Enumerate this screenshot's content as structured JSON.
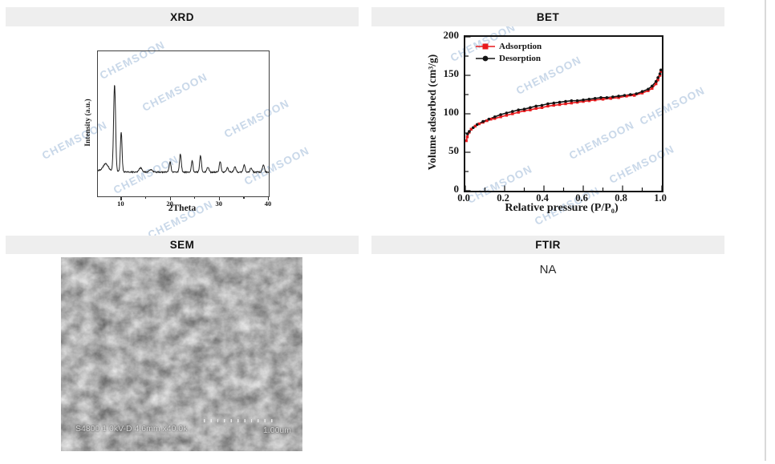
{
  "page": {
    "background": "#ffffff",
    "right_border_color": "#d9d9d9",
    "header_background": "#eeeeee"
  },
  "panels": {
    "xrd": {
      "title": "XRD"
    },
    "bet": {
      "title": "BET"
    },
    "sem": {
      "title": "SEM"
    },
    "ftir": {
      "title": "FTIR",
      "content": "NA"
    }
  },
  "watermark": {
    "text": "CHEMSOON",
    "color": "rgba(148,177,212,0.5)"
  },
  "sem_image": {
    "caption_left": "S4800 1.0kV-D 4.6mm x40.0k",
    "caption_right": "1.00um"
  },
  "chart_data": [
    {
      "id": "xrd",
      "type": "line",
      "xlabel": "2Theta",
      "ylabel": "Intensity (a.u.)",
      "xlim": [
        5.2,
        40
      ],
      "xticks": [
        10,
        20,
        30,
        40
      ],
      "xtick_labels": [
        "10",
        "20",
        "30",
        "40"
      ],
      "minor_xticks": [
        15,
        25,
        35
      ],
      "line_color": "#1f1f1f",
      "grid": false,
      "peaks": [
        {
          "two_theta": 6.8,
          "rel_intensity": 0.08,
          "width": 0.5
        },
        {
          "two_theta": 8.6,
          "rel_intensity": 1.0,
          "width": 0.2
        },
        {
          "two_theta": 9.95,
          "rel_intensity": 0.46,
          "width": 0.17
        },
        {
          "two_theta": 13.9,
          "rel_intensity": 0.05,
          "width": 0.3
        },
        {
          "two_theta": 16.0,
          "rel_intensity": 0.03,
          "width": 0.3
        },
        {
          "two_theta": 19.9,
          "rel_intensity": 0.12,
          "width": 0.18
        },
        {
          "two_theta": 22.0,
          "rel_intensity": 0.21,
          "width": 0.18
        },
        {
          "two_theta": 24.4,
          "rel_intensity": 0.13,
          "width": 0.16
        },
        {
          "two_theta": 26.1,
          "rel_intensity": 0.19,
          "width": 0.18
        },
        {
          "two_theta": 27.6,
          "rel_intensity": 0.06,
          "width": 0.2
        },
        {
          "two_theta": 30.1,
          "rel_intensity": 0.12,
          "width": 0.18
        },
        {
          "two_theta": 31.6,
          "rel_intensity": 0.05,
          "width": 0.2
        },
        {
          "two_theta": 33.1,
          "rel_intensity": 0.06,
          "width": 0.2
        },
        {
          "two_theta": 35.0,
          "rel_intensity": 0.09,
          "width": 0.18
        },
        {
          "two_theta": 36.4,
          "rel_intensity": 0.05,
          "width": 0.2
        },
        {
          "two_theta": 38.9,
          "rel_intensity": 0.08,
          "width": 0.2
        }
      ]
    },
    {
      "id": "bet",
      "type": "line",
      "xlabel": "Relative pressure  (P/P₀)",
      "ylabel": "Volume adsorbed (cm³/g)",
      "xlim": [
        0,
        1
      ],
      "ylim": [
        0,
        200
      ],
      "xticks": [
        0,
        0.2,
        0.4,
        0.6,
        0.8,
        1.0
      ],
      "xtick_labels": [
        "0.0",
        "0.2",
        "0.4",
        "0.6",
        "0.8",
        "1.0"
      ],
      "yticks": [
        0,
        50,
        100,
        150,
        200
      ],
      "ytick_labels": [
        "0",
        "50",
        "100",
        "150",
        "200"
      ],
      "legend_position": "top-left",
      "grid": false,
      "series": [
        {
          "name": "Adsorption",
          "color": "#e8191c",
          "marker": "square",
          "x": [
            0.005,
            0.01,
            0.02,
            0.03,
            0.05,
            0.07,
            0.09,
            0.11,
            0.13,
            0.15,
            0.18,
            0.21,
            0.24,
            0.27,
            0.3,
            0.33,
            0.36,
            0.39,
            0.42,
            0.45,
            0.48,
            0.51,
            0.54,
            0.57,
            0.6,
            0.63,
            0.66,
            0.7,
            0.74,
            0.78,
            0.82,
            0.86,
            0.9,
            0.93,
            0.95,
            0.97,
            0.98,
            0.99,
            0.995
          ],
          "y": [
            65,
            70,
            76,
            80,
            84,
            87,
            89,
            91,
            93,
            94,
            96,
            98,
            100,
            102,
            104,
            105,
            107,
            108,
            110,
            111,
            112,
            113,
            114,
            115,
            116,
            117,
            118,
            119,
            120,
            121,
            123,
            124,
            127,
            130,
            133,
            139,
            144,
            150,
            155
          ]
        },
        {
          "name": "Desorption",
          "color": "#141414",
          "marker": "circle",
          "x": [
            0.995,
            0.99,
            0.98,
            0.97,
            0.95,
            0.93,
            0.9,
            0.87,
            0.84,
            0.81,
            0.78,
            0.75,
            0.72,
            0.69,
            0.66,
            0.63,
            0.6,
            0.57,
            0.54,
            0.51,
            0.48,
            0.45,
            0.42,
            0.39,
            0.36,
            0.33,
            0.3,
            0.27,
            0.24,
            0.21,
            0.18,
            0.15,
            0.12,
            0.09,
            0.06,
            0.04,
            0.02,
            0.01
          ],
          "y": [
            157,
            152,
            147,
            142,
            136,
            132,
            129,
            126,
            125,
            124,
            123,
            122,
            121,
            121,
            120,
            119,
            118,
            117,
            117,
            116,
            115,
            114,
            113,
            111,
            110,
            108,
            106,
            105,
            103,
            101,
            99,
            96,
            93,
            90,
            86,
            82,
            77,
            74
          ]
        }
      ]
    }
  ]
}
